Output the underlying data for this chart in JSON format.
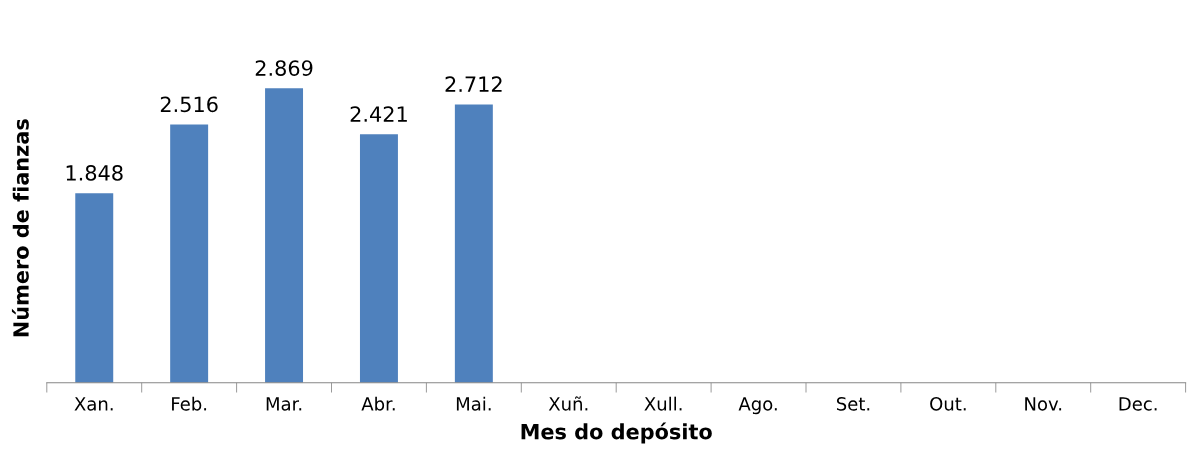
{
  "chart_data": {
    "type": "bar",
    "xlabel": "Mes do depósito",
    "ylabel": "Número de fianzas",
    "categories": [
      "Xan.",
      "Feb.",
      "Mar.",
      "Abr.",
      "Mai.",
      "Xuñ.",
      "Xull.",
      "Ago.",
      "Set.",
      "Out.",
      "Nov.",
      "Dec."
    ],
    "series": [
      {
        "color": "#4f81bd",
        "values": [
          1848,
          2516,
          2869,
          2421,
          2712,
          null,
          null,
          null,
          null,
          null,
          null,
          null
        ],
        "value_labels": [
          "1.848",
          "2.516",
          "2.869",
          "2.421",
          "2.712",
          null,
          null,
          null,
          null,
          null,
          null,
          null
        ]
      }
    ],
    "tick_labels": "x",
    "grid": false,
    "legend": false
  }
}
